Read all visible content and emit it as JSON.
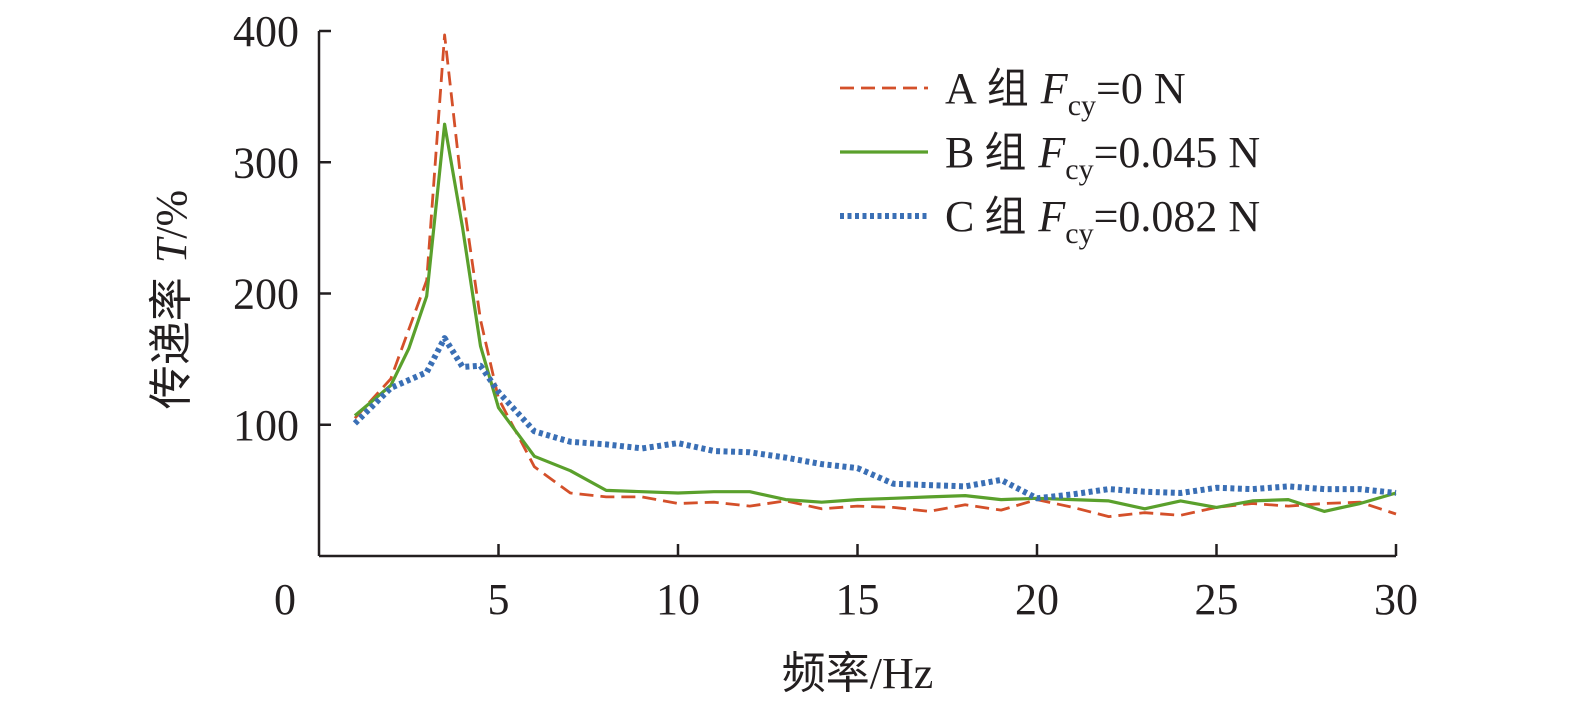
{
  "chart_data": {
    "type": "line",
    "x_axis": {
      "label_cjk": "频率",
      "label_latin": "/Hz",
      "range": [
        0,
        30
      ],
      "ticks": [
        0,
        5,
        10,
        15,
        20,
        25,
        30
      ]
    },
    "y_axis": {
      "label_cjk": "传递率",
      "label_var": "T",
      "label_unit": "/%",
      "range": [
        0,
        400
      ],
      "ticks": [
        100,
        200,
        300,
        400
      ]
    },
    "legend": {
      "position": "top-right"
    },
    "series": [
      {
        "id": "A",
        "group": "A",
        "group_word": "组",
        "var": "F",
        "sub": "cy",
        "value_text": "=0 N",
        "color": "#d4502a",
        "style": "dashed",
        "x": [
          1,
          2,
          3,
          3.5,
          4,
          4.5,
          5,
          6,
          7,
          8,
          9,
          10,
          11,
          12,
          13,
          14,
          15,
          16,
          17,
          18,
          19,
          20,
          21,
          22,
          23,
          24,
          25,
          26,
          27,
          28,
          29,
          30
        ],
        "y": [
          105,
          135,
          210,
          397,
          275,
          180,
          120,
          68,
          48,
          45,
          45,
          40,
          41,
          38,
          42,
          36,
          38,
          37,
          34,
          39,
          35,
          43,
          37,
          30,
          33,
          31,
          37,
          40,
          38,
          40,
          41,
          32
        ]
      },
      {
        "id": "B",
        "group": "B",
        "group_word": "组",
        "var": "F",
        "sub": "cy",
        "value_text": "=0.045 N",
        "color": "#5aa02c",
        "style": "solid",
        "x": [
          1,
          2,
          2.5,
          3,
          3.5,
          4,
          4.5,
          5,
          6,
          7,
          8,
          9,
          10,
          11,
          12,
          13,
          14,
          15,
          16,
          17,
          18,
          19,
          20,
          21,
          22,
          23,
          24,
          25,
          26,
          27,
          28,
          29,
          30
        ],
        "y": [
          107,
          130,
          158,
          198,
          329,
          250,
          160,
          113,
          76,
          65,
          50,
          49,
          48,
          49,
          49,
          43,
          41,
          43,
          44,
          45,
          46,
          43,
          44,
          43,
          42,
          36,
          42,
          37,
          42,
          43,
          34,
          40,
          48
        ]
      },
      {
        "id": "C",
        "group": "C",
        "group_word": "组",
        "var": "F",
        "sub": "cy",
        "value_text": "=0.082 N",
        "color": "#3a6fb5",
        "style": "dotted",
        "x": [
          1,
          2,
          3,
          3.5,
          4,
          4.5,
          5,
          6,
          7,
          8,
          9,
          10,
          11,
          12,
          13,
          14,
          15,
          16,
          17,
          18,
          19,
          20,
          21,
          22,
          23,
          24,
          25,
          26,
          27,
          28,
          29,
          30
        ],
        "y": [
          101,
          128,
          140,
          166,
          144,
          145,
          125,
          95,
          87,
          85,
          82,
          86,
          80,
          79,
          75,
          70,
          67,
          55,
          54,
          53,
          58,
          44,
          47,
          51,
          49,
          48,
          52,
          51,
          53,
          51,
          51,
          48
        ]
      }
    ]
  }
}
